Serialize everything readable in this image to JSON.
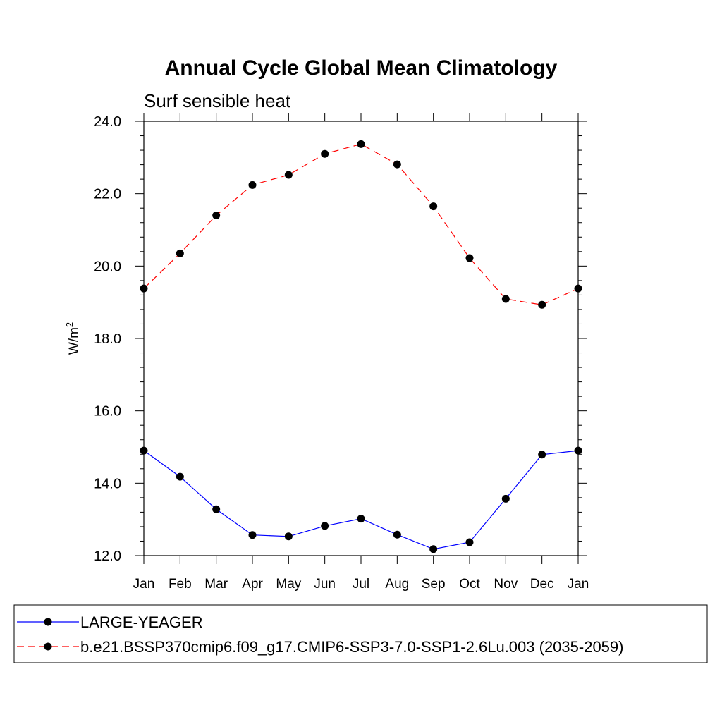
{
  "chart_data": {
    "type": "line",
    "title": "Annual Cycle Global Mean Climatology",
    "subtitle": "Surf sensible heat",
    "ylabel_base": "W/m",
    "ylabel_sup": "2",
    "categories": [
      "Jan",
      "Feb",
      "Mar",
      "Apr",
      "May",
      "Jun",
      "Jul",
      "Aug",
      "Sep",
      "Oct",
      "Nov",
      "Dec",
      "Jan"
    ],
    "ylim": [
      12.0,
      24.0
    ],
    "yticks": [
      "12.0",
      "14.0",
      "16.0",
      "18.0",
      "20.0",
      "22.0",
      "24.0"
    ],
    "series": [
      {
        "name": "LARGE-YEAGER",
        "color": "#0000ff",
        "dashed": false,
        "values": [
          14.9,
          14.18,
          13.28,
          12.57,
          12.53,
          12.82,
          13.02,
          12.58,
          12.18,
          12.37,
          13.57,
          14.79,
          14.9
        ]
      },
      {
        "name": "b.e21.BSSP370cmip6.f09_g17.CMIP6-SSP3-7.0-SSP1-2.6Lu.003 (2035-2059)",
        "color": "#ff0000",
        "dashed": true,
        "values": [
          19.38,
          20.35,
          21.4,
          22.24,
          22.52,
          23.1,
          23.37,
          22.81,
          21.65,
          20.22,
          19.09,
          18.93,
          19.38
        ]
      }
    ]
  }
}
